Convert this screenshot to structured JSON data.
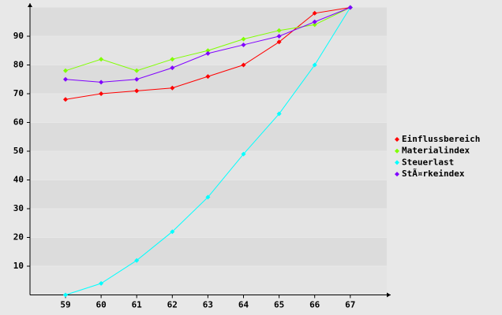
{
  "chart_data": {
    "type": "line",
    "categories": [
      "59",
      "60",
      "61",
      "62",
      "63",
      "64",
      "65",
      "66",
      "67"
    ],
    "series": [
      {
        "name": "Einflussbereich",
        "color": "#ff0000",
        "values": [
          68,
          70,
          71,
          72,
          76,
          80,
          88,
          98,
          100
        ]
      },
      {
        "name": "Materialindex",
        "color": "#80ff00",
        "values": [
          78,
          82,
          78,
          82,
          85,
          89,
          92,
          94,
          100
        ]
      },
      {
        "name": "Steuerlast",
        "color": "#00ffff",
        "values": [
          0,
          4,
          12,
          22,
          34,
          49,
          63,
          80,
          100
        ]
      },
      {
        "name": "StÃ¤rkeindex",
        "color": "#8000ff",
        "values": [
          75,
          74,
          75,
          79,
          84,
          87,
          90,
          95,
          100
        ]
      }
    ],
    "ylim": [
      0,
      100
    ],
    "yticks": [
      10,
      20,
      30,
      40,
      50,
      60,
      70,
      80,
      90
    ],
    "grid": true,
    "legend": "right"
  }
}
